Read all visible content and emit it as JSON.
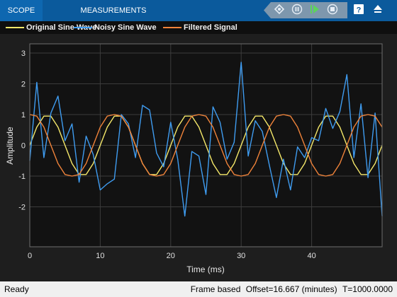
{
  "toolstrip": {
    "tabs": [
      {
        "label": "SCOPE",
        "active": true
      },
      {
        "label": "MEASUREMENTS",
        "active": false
      }
    ],
    "buttons": [
      "signal-select-icon",
      "pause-icon",
      "run-icon",
      "stop-icon",
      "help-icon",
      "expand-icon"
    ]
  },
  "legend": [
    {
      "label": "Original Sine Wave",
      "color": "#f5e86a"
    },
    {
      "label": "Noisy Sine Wave",
      "color": "#3f9cf0"
    },
    {
      "label": "Filtered Signal",
      "color": "#f0833a"
    }
  ],
  "chart_data": {
    "type": "line",
    "xlabel": "Time (ms)",
    "ylabel": "Amplitude",
    "xlim": [
      0,
      50
    ],
    "ylim": [
      -3.3,
      3.3
    ],
    "xticks": [
      0,
      10,
      20,
      30,
      40
    ],
    "yticks": [
      -2,
      -1,
      0,
      1,
      2,
      3
    ],
    "grid": true,
    "x": [
      0,
      1,
      2,
      3,
      4,
      5,
      6,
      7,
      8,
      9,
      10,
      11,
      12,
      13,
      14,
      15,
      16,
      17,
      18,
      19,
      20,
      21,
      22,
      23,
      24,
      25,
      26,
      27,
      28,
      29,
      30,
      31,
      32,
      33,
      34,
      35,
      36,
      37,
      38,
      39,
      40,
      41,
      42,
      43,
      44,
      45,
      46,
      47,
      48,
      49,
      50
    ],
    "series": [
      {
        "name": "Original Sine Wave",
        "color": "#f5e86a",
        "values": [
          0,
          0.59,
          0.95,
          0.95,
          0.59,
          0,
          -0.59,
          -0.95,
          -0.95,
          -0.59,
          0,
          0.59,
          0.95,
          0.95,
          0.59,
          0,
          -0.59,
          -0.95,
          -0.95,
          -0.59,
          0,
          0.59,
          0.95,
          0.95,
          0.59,
          0,
          -0.59,
          -0.95,
          -0.95,
          -0.59,
          0,
          0.59,
          0.95,
          0.95,
          0.59,
          0,
          -0.59,
          -0.95,
          -0.95,
          -0.59,
          0,
          0.59,
          0.95,
          0.95,
          0.59,
          0,
          -0.59,
          -0.95,
          -0.95,
          -0.59,
          0
        ]
      },
      {
        "name": "Noisy Sine Wave",
        "color": "#3f9cf0",
        "values": [
          -0.5,
          2.05,
          -0.4,
          1.05,
          1.6,
          0.15,
          0.7,
          -1.2,
          0.3,
          -0.3,
          -1.45,
          -1.25,
          -1.1,
          1.0,
          0.7,
          -0.4,
          1.3,
          1.15,
          -0.25,
          -0.7,
          0.75,
          -0.45,
          -2.3,
          -0.2,
          -0.35,
          -1.6,
          1.25,
          0.75,
          -0.45,
          0.1,
          2.7,
          -0.35,
          0.8,
          0.45,
          -0.65,
          -1.7,
          -0.45,
          -1.45,
          -0.05,
          -0.4,
          0.25,
          0.15,
          1.2,
          0.55,
          1.1,
          2.3,
          -0.4,
          1.35,
          -1.05,
          1.05,
          -2.3
        ]
      },
      {
        "name": "Filtered Signal",
        "color": "#f0833a",
        "values": [
          1.0,
          0.95,
          0.59,
          0,
          -0.59,
          -0.95,
          -1.0,
          -0.95,
          -0.59,
          0,
          0.59,
          0.95,
          1.0,
          0.95,
          0.59,
          0,
          -0.59,
          -0.95,
          -1.0,
          -0.95,
          -0.59,
          0,
          0.59,
          0.95,
          1.0,
          0.95,
          0.59,
          0,
          -0.59,
          -0.95,
          -1.0,
          -0.95,
          -0.59,
          0,
          0.59,
          0.95,
          1.0,
          0.95,
          0.59,
          0,
          -0.59,
          -0.95,
          -1.0,
          -0.95,
          -0.59,
          0,
          0.59,
          0.95,
          1.0,
          0.95,
          0.59
        ]
      }
    ]
  },
  "status": {
    "left": "Ready",
    "mode": "Frame based",
    "offset": "Offset=16.667 (minutes)",
    "time": "T=1000.0000"
  }
}
